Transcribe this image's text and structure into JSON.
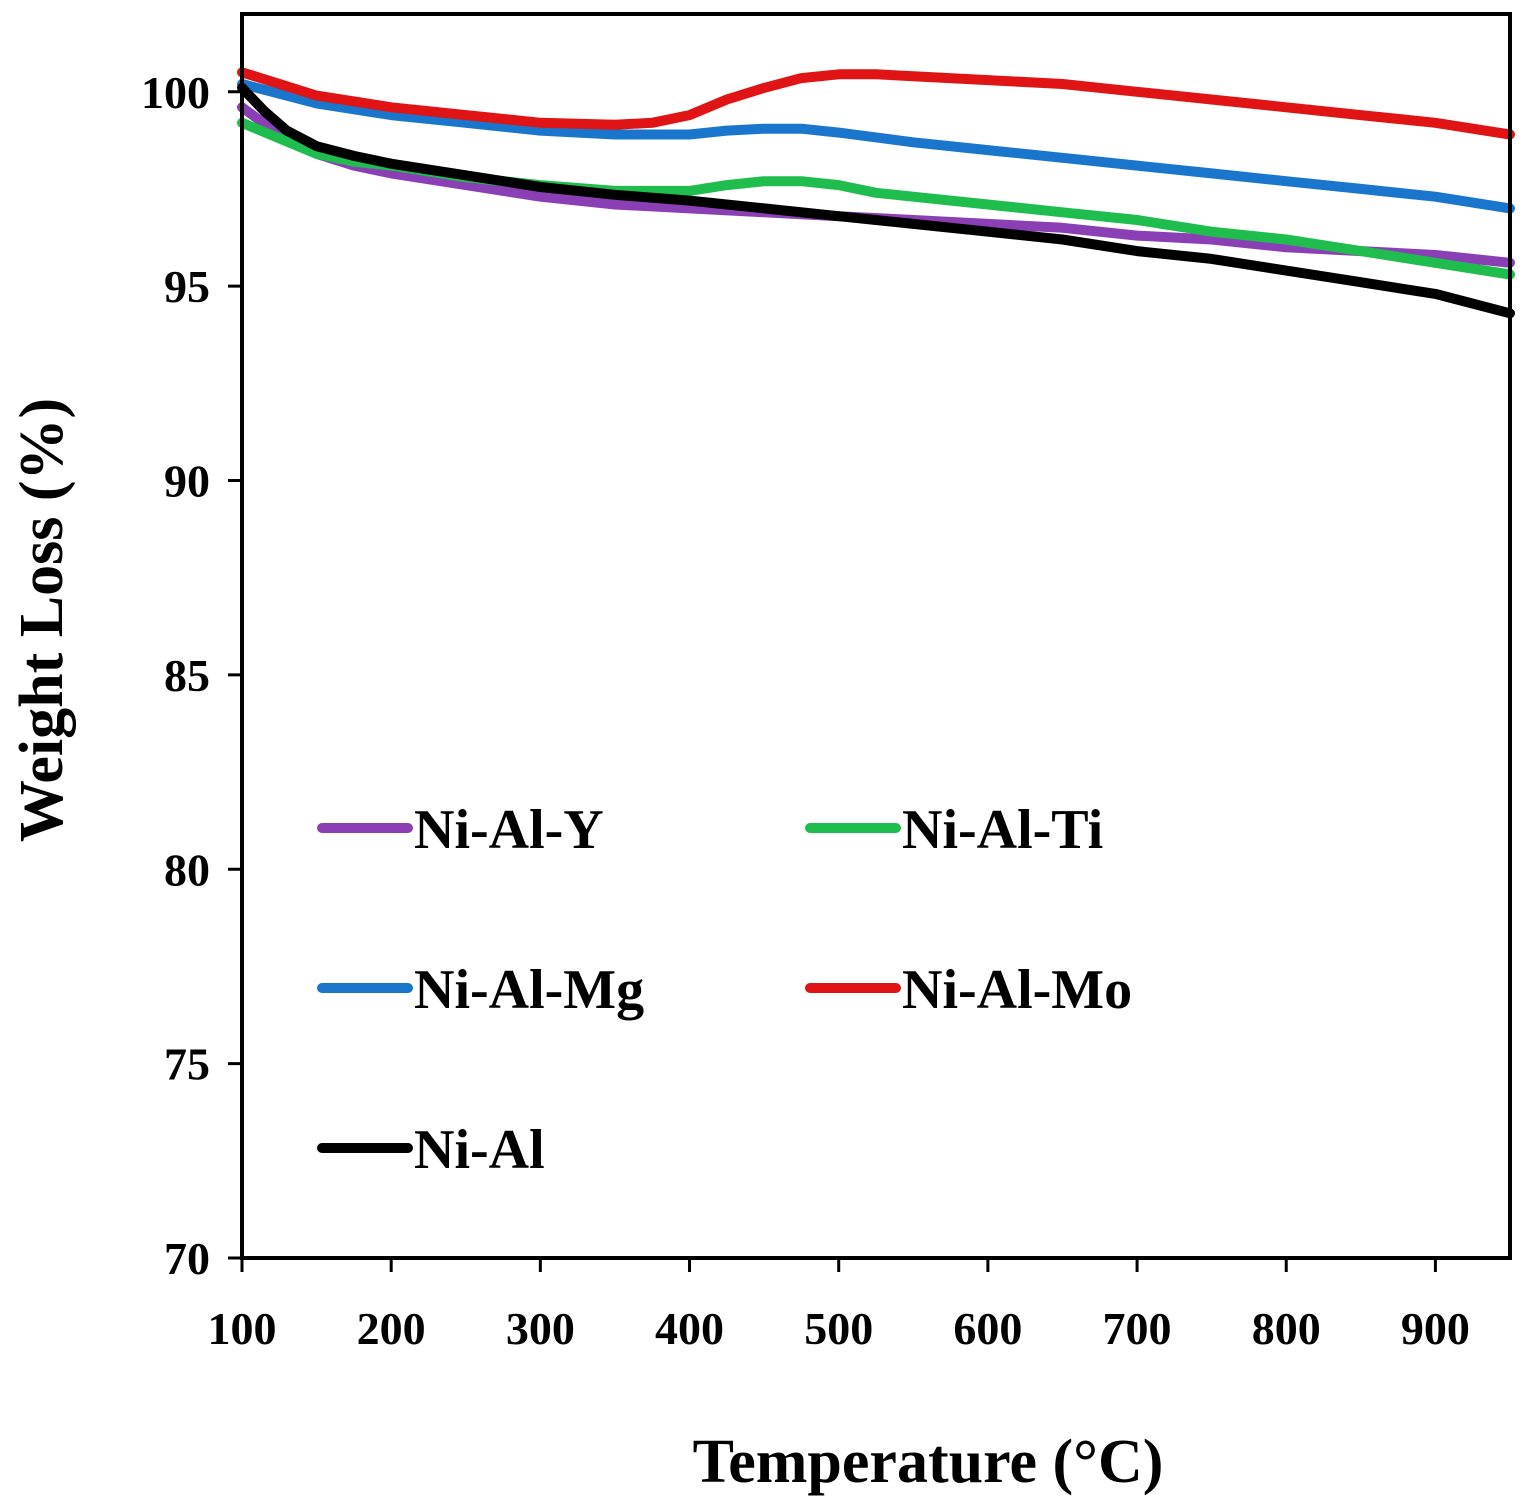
{
  "chart_data": {
    "type": "line",
    "title": "",
    "xlabel": "Temperature (°C)",
    "ylabel": "Weight Loss (%)",
    "xlim": [
      100,
      950
    ],
    "ylim": [
      70,
      102
    ],
    "xticks": [
      100,
      200,
      300,
      400,
      500,
      600,
      700,
      800,
      900
    ],
    "yticks": [
      70,
      75,
      80,
      85,
      90,
      95,
      100
    ],
    "grid": false,
    "legend_position": "lower-left",
    "series": [
      {
        "name": "Ni-Al-Y",
        "color": "#8b3fb5",
        "x": [
          100,
          125,
          150,
          175,
          200,
          250,
          300,
          350,
          400,
          450,
          500,
          550,
          600,
          650,
          700,
          750,
          800,
          850,
          900,
          950
        ],
        "y": [
          99.6,
          98.9,
          98.4,
          98.1,
          97.9,
          97.6,
          97.3,
          97.1,
          97.0,
          96.9,
          96.8,
          96.7,
          96.6,
          96.5,
          96.3,
          96.2,
          96.0,
          95.9,
          95.8,
          95.6
        ]
      },
      {
        "name": "Ni-Al-Ti",
        "color": "#1fbd4e",
        "x": [
          100,
          125,
          150,
          175,
          200,
          250,
          300,
          350,
          400,
          425,
          450,
          475,
          500,
          525,
          550,
          600,
          650,
          700,
          750,
          800,
          850,
          900,
          950
        ],
        "y": [
          99.2,
          98.8,
          98.4,
          98.2,
          98.1,
          97.8,
          97.6,
          97.45,
          97.45,
          97.6,
          97.7,
          97.7,
          97.6,
          97.4,
          97.3,
          97.1,
          96.9,
          96.7,
          96.4,
          96.2,
          95.9,
          95.6,
          95.3
        ]
      },
      {
        "name": "Ni-Al-Mg",
        "color": "#1a76cc",
        "x": [
          100,
          150,
          200,
          250,
          300,
          350,
          400,
          425,
          450,
          475,
          500,
          550,
          600,
          650,
          700,
          750,
          800,
          850,
          900,
          950
        ],
        "y": [
          100.2,
          99.7,
          99.4,
          99.2,
          99.0,
          98.9,
          98.9,
          99.0,
          99.05,
          99.05,
          98.95,
          98.7,
          98.5,
          98.3,
          98.1,
          97.9,
          97.7,
          97.5,
          97.3,
          97.0
        ]
      },
      {
        "name": "Ni-Al-Mo",
        "color": "#e01414",
        "x": [
          100,
          150,
          200,
          250,
          300,
          350,
          375,
          400,
          425,
          450,
          475,
          500,
          525,
          550,
          600,
          650,
          700,
          750,
          800,
          850,
          900,
          950
        ],
        "y": [
          100.5,
          99.9,
          99.6,
          99.4,
          99.2,
          99.15,
          99.2,
          99.4,
          99.8,
          100.1,
          100.35,
          100.45,
          100.45,
          100.4,
          100.3,
          100.2,
          100.0,
          99.8,
          99.6,
          99.4,
          99.2,
          98.9
        ]
      },
      {
        "name": "Ni-Al",
        "color": "#000000",
        "x": [
          100,
          115,
          130,
          150,
          175,
          200,
          250,
          300,
          350,
          400,
          450,
          500,
          550,
          600,
          650,
          700,
          750,
          800,
          850,
          900,
          950
        ],
        "y": [
          100.1,
          99.5,
          99.0,
          98.6,
          98.35,
          98.15,
          97.85,
          97.55,
          97.35,
          97.2,
          97.0,
          96.8,
          96.6,
          96.4,
          96.2,
          95.9,
          95.7,
          95.4,
          95.1,
          94.8,
          94.3
        ]
      }
    ]
  }
}
